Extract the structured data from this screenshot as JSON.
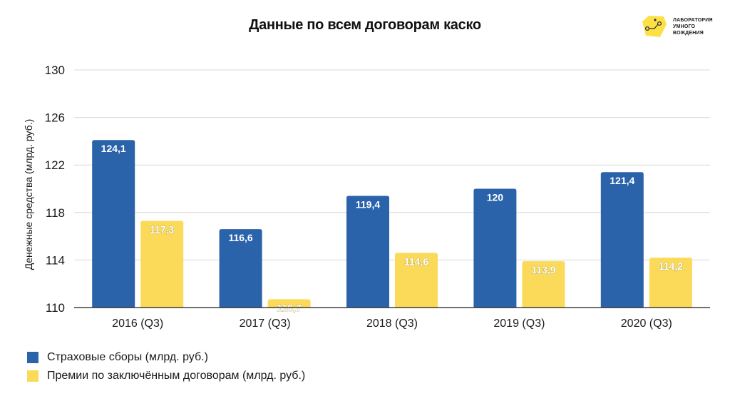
{
  "header": {
    "title": "Данные по всем договорам каско"
  },
  "logo": {
    "lines": [
      "ЛАБОРАТОРИЯ",
      "УМНОГО",
      "ВОЖДЕНИЯ"
    ],
    "color": "#FDE047"
  },
  "chart_data": {
    "type": "bar",
    "title": "Данные по всем договорам каско",
    "ylabel": "Денежные средства (млрд. руб.)",
    "xlabel": "",
    "categories": [
      "2016 (Q3)",
      "2017 (Q3)",
      "2018 (Q3)",
      "2019 (Q3)",
      "2020 (Q3)"
    ],
    "series": [
      {
        "name": "Страховые сборы (млрд. руб.)",
        "color": "#2B63AB",
        "values": [
          124.1,
          116.6,
          119.4,
          120,
          121.4
        ],
        "labels": [
          "124,1",
          "116,6",
          "119,4",
          "120",
          "121,4"
        ]
      },
      {
        "name": "Премии по заключённым договорам (млрд. руб.)",
        "color": "#FBDA5A",
        "values": [
          117.3,
          110.7,
          114.6,
          113.9,
          114.2
        ],
        "labels": [
          "117,3",
          "110,7",
          "114,6",
          "113,9",
          "114,2"
        ]
      }
    ],
    "ylim": [
      110,
      130
    ],
    "yticks": [
      "110",
      "114",
      "118",
      "122",
      "126",
      "130"
    ],
    "grid": true,
    "legend": "bottom-left"
  }
}
